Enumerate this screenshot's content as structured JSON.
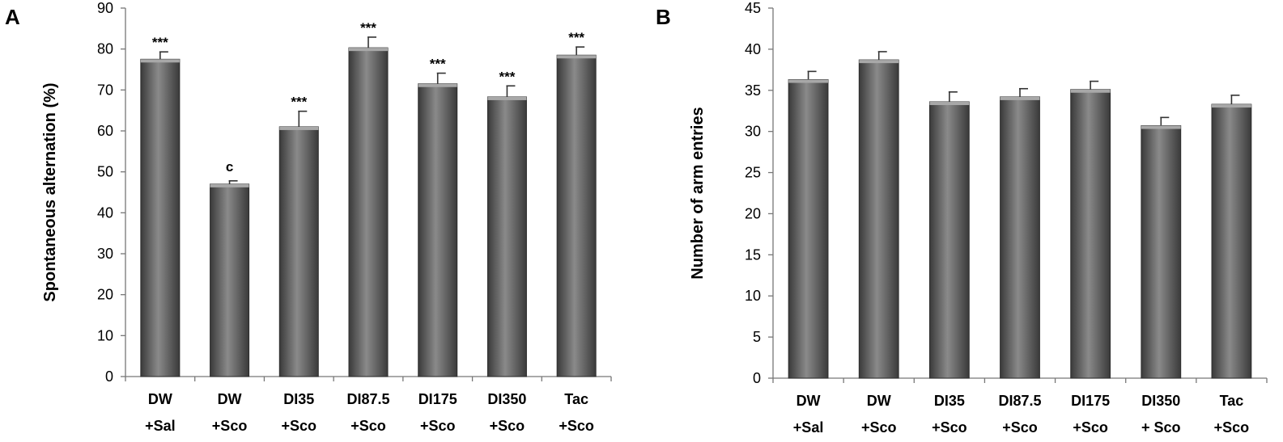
{
  "chart_data": [
    {
      "type": "bar",
      "panel_label": "A",
      "ylabel": "Spontaneous alternation (%)",
      "xlabel": "",
      "ylim": [
        0,
        90
      ],
      "yticks": [
        0,
        10,
        20,
        30,
        40,
        50,
        60,
        70,
        80,
        90
      ],
      "categories": [
        [
          "DW",
          "+Sal"
        ],
        [
          "DW",
          "+Sco"
        ],
        [
          "DI35",
          "+Sco"
        ],
        [
          "DI87.5",
          "+Sco"
        ],
        [
          "DI175",
          "+Sco"
        ],
        [
          "DI350",
          "+Sco"
        ],
        [
          "Tac",
          "+Sco"
        ]
      ],
      "values": [
        77.5,
        47,
        61,
        80.3,
        71.5,
        68.3,
        78.5
      ],
      "errors": [
        1.8,
        0.8,
        3.8,
        2.6,
        2.6,
        2.7,
        2.0
      ],
      "annotations": [
        "***",
        "c",
        "***",
        "***",
        "***",
        "***",
        "***"
      ],
      "bar_color": "#555555"
    },
    {
      "type": "bar",
      "panel_label": "B",
      "ylabel": "Number of arm entries",
      "xlabel": "",
      "ylim": [
        0,
        45
      ],
      "yticks": [
        0,
        5,
        10,
        15,
        20,
        25,
        30,
        35,
        40,
        45
      ],
      "categories": [
        [
          "DW",
          "+Sal"
        ],
        [
          "DW",
          "+Sco"
        ],
        [
          "DI35",
          "+Sco"
        ],
        [
          "DI87.5",
          "+Sco"
        ],
        [
          "DI175",
          "+Sco"
        ],
        [
          "DI350",
          "+ Sco"
        ],
        [
          "Tac",
          "+Sco"
        ]
      ],
      "values": [
        36.3,
        38.7,
        33.6,
        34.2,
        35.1,
        30.7,
        33.3
      ],
      "errors": [
        1.0,
        1.0,
        1.2,
        1.0,
        1.0,
        1.0,
        1.1
      ],
      "annotations": [
        "",
        "",
        "",
        "",
        "",
        "",
        ""
      ],
      "bar_color": "#555555"
    }
  ]
}
